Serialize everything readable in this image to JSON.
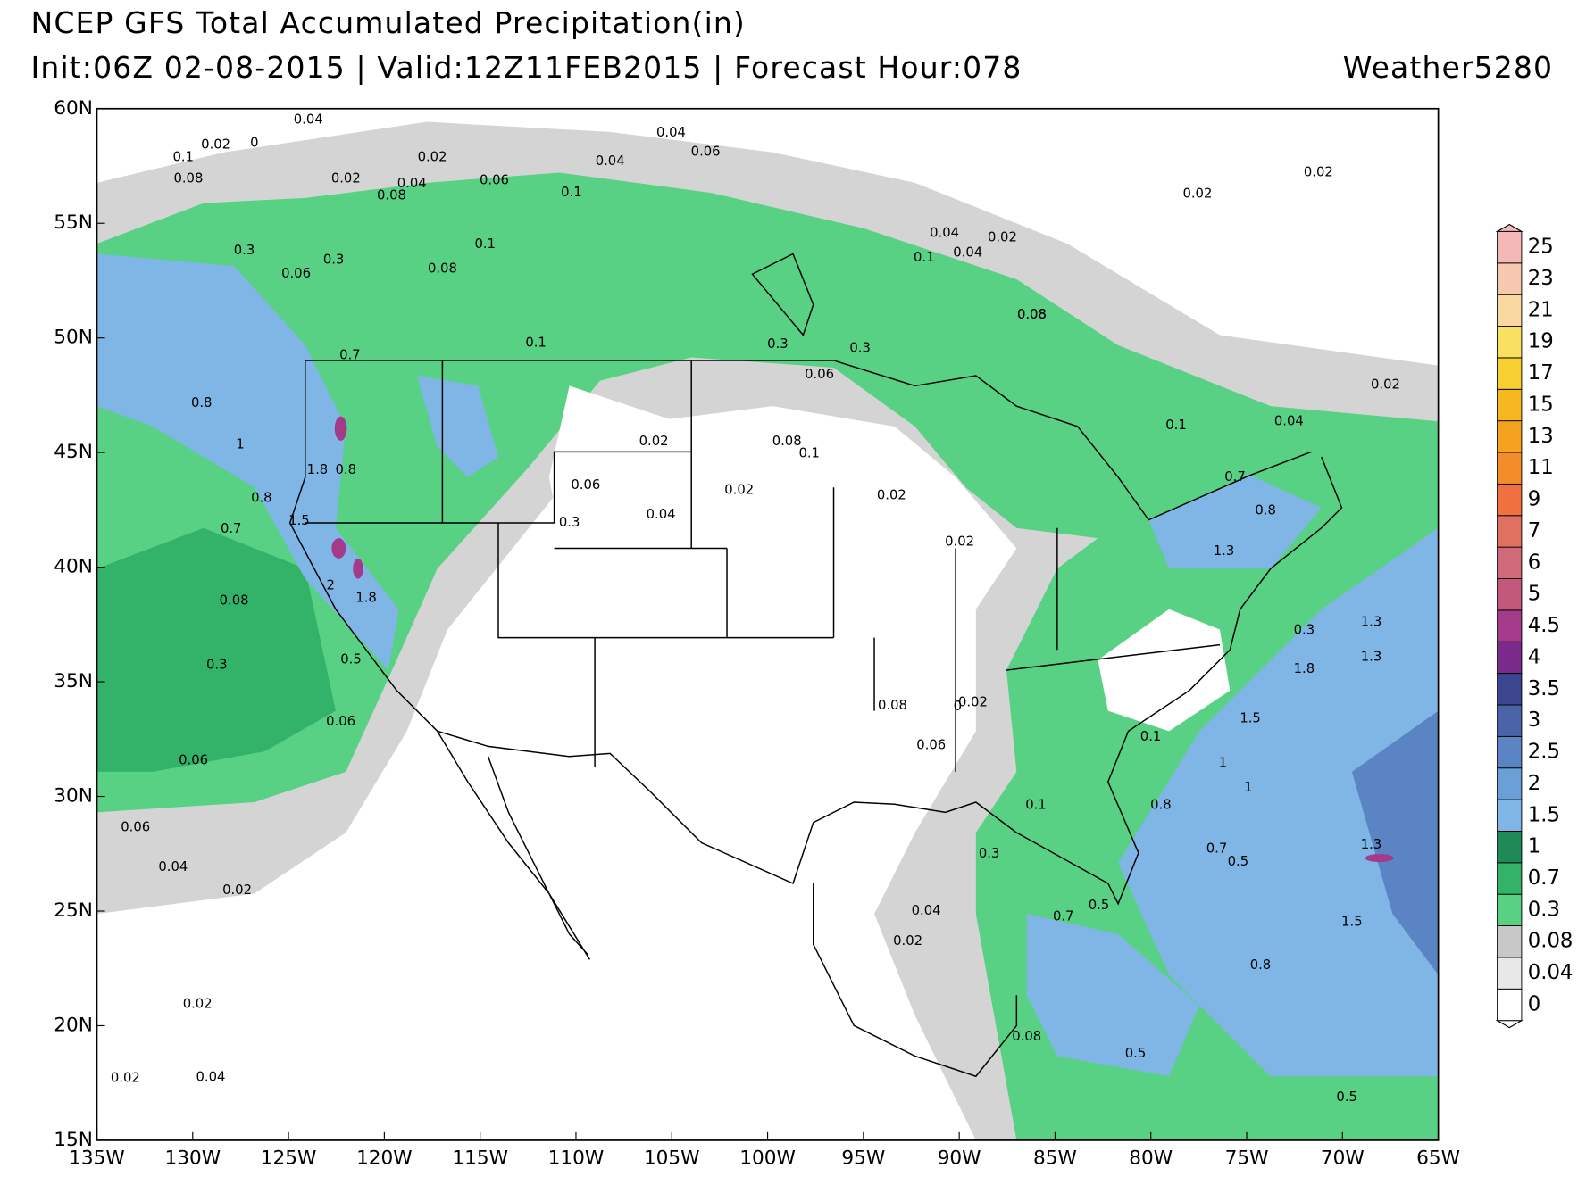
{
  "header": {
    "title": "NCEP GFS Total Accumulated Precipitation(in)",
    "subtitle": "Init:06Z 02-08-2015 | Valid:12Z11FEB2015 | Forecast Hour:078",
    "brand": "Weather5280"
  },
  "map": {
    "xlim": [
      -135,
      -65
    ],
    "xticks": [
      {
        "value": -135,
        "label": "135W"
      },
      {
        "value": -130,
        "label": "130W"
      },
      {
        "value": -125,
        "label": "125W"
      },
      {
        "value": -120,
        "label": "120W"
      },
      {
        "value": -115,
        "label": "115W"
      },
      {
        "value": -110,
        "label": "110W"
      },
      {
        "value": -105,
        "label": "105W"
      },
      {
        "value": -100,
        "label": "100W"
      },
      {
        "value": -95,
        "label": "95W"
      },
      {
        "value": -90,
        "label": "90W"
      },
      {
        "value": -85,
        "label": "85W"
      },
      {
        "value": -80,
        "label": "80W"
      },
      {
        "value": -75,
        "label": "75W"
      },
      {
        "value": -70,
        "label": "70W"
      },
      {
        "value": -65,
        "label": "65W"
      }
    ],
    "ylim": [
      15,
      60
    ],
    "yticks": [
      {
        "value": 15,
        "label": "15N"
      },
      {
        "value": 20,
        "label": "20N"
      },
      {
        "value": 25,
        "label": "25N"
      },
      {
        "value": 30,
        "label": "30N"
      },
      {
        "value": 35,
        "label": "35N"
      },
      {
        "value": 40,
        "label": "40N"
      },
      {
        "value": 45,
        "label": "45N"
      },
      {
        "value": 50,
        "label": "50N"
      },
      {
        "value": 55,
        "label": "55N"
      },
      {
        "value": 60,
        "label": "60N"
      }
    ],
    "contour_labels": [
      "0.04",
      "0.02",
      "0",
      "0.1",
      "0.08",
      "0.04",
      "0.06",
      "0.1",
      "0.08",
      "0.04",
      "0.06",
      "0.02",
      "0.04",
      "0.02",
      "0.02",
      "0.3",
      "0.1",
      "0.08",
      "0.3",
      "0.3",
      "0.08",
      "0.1",
      "0.7",
      "0.8",
      "1",
      "1.8",
      "0.8",
      "0.8",
      "0.7",
      "1.5",
      "2",
      "1.8",
      "0.5",
      "0.3",
      "0.06",
      "0.08",
      "0.06",
      "0.1",
      "0.04",
      "0.02",
      "0.04",
      "0.02",
      "0.06",
      "0.3",
      "0.3",
      "0.06",
      "0.02",
      "0.04",
      "0.08",
      "0.02",
      "0.04",
      "0.1",
      "0.02",
      "0.08",
      "0.1",
      "1.3",
      "0.8",
      "0.7",
      "0.3",
      "1.3",
      "1.8",
      "1.5",
      "1",
      "1",
      "0.8",
      "1.3",
      "1.5",
      "0.8",
      "0.5",
      "0.1",
      "0.7",
      "0.7",
      "0.3",
      "0.5",
      "0.02",
      "0.02",
      "0",
      "0.02",
      "0.04",
      "0.06",
      "0.02",
      "0.08",
      "0.04",
      "0.02",
      "0.06",
      "0.02",
      "0.06",
      "0.04",
      "0.02",
      "0.1",
      "0.5",
      "1.3",
      "0.08",
      "0.5"
    ]
  },
  "colorbar": {
    "levels": [
      0,
      0.04,
      0.08,
      0.3,
      0.7,
      1,
      1.5,
      2,
      2.5,
      3,
      3.5,
      4,
      4.5,
      5,
      6,
      7,
      9,
      11,
      13,
      15,
      17,
      19,
      21,
      23,
      25
    ],
    "colors": [
      "#ffffff",
      "#e8e8e8",
      "#c8c8c8",
      "#58d184",
      "#33b36a",
      "#1f8a58",
      "#7fb6e6",
      "#6a9fd8",
      "#5a84c4",
      "#4a63a8",
      "#3b4590",
      "#7a2a8a",
      "#a43a8a",
      "#c4587a",
      "#d06a7a",
      "#e07060",
      "#f07040",
      "#f48c2a",
      "#f5a21e",
      "#f6b820",
      "#f7cf30",
      "#f8e060",
      "#f8d8a0",
      "#f6c8b0",
      "#f4b8b8"
    ]
  }
}
